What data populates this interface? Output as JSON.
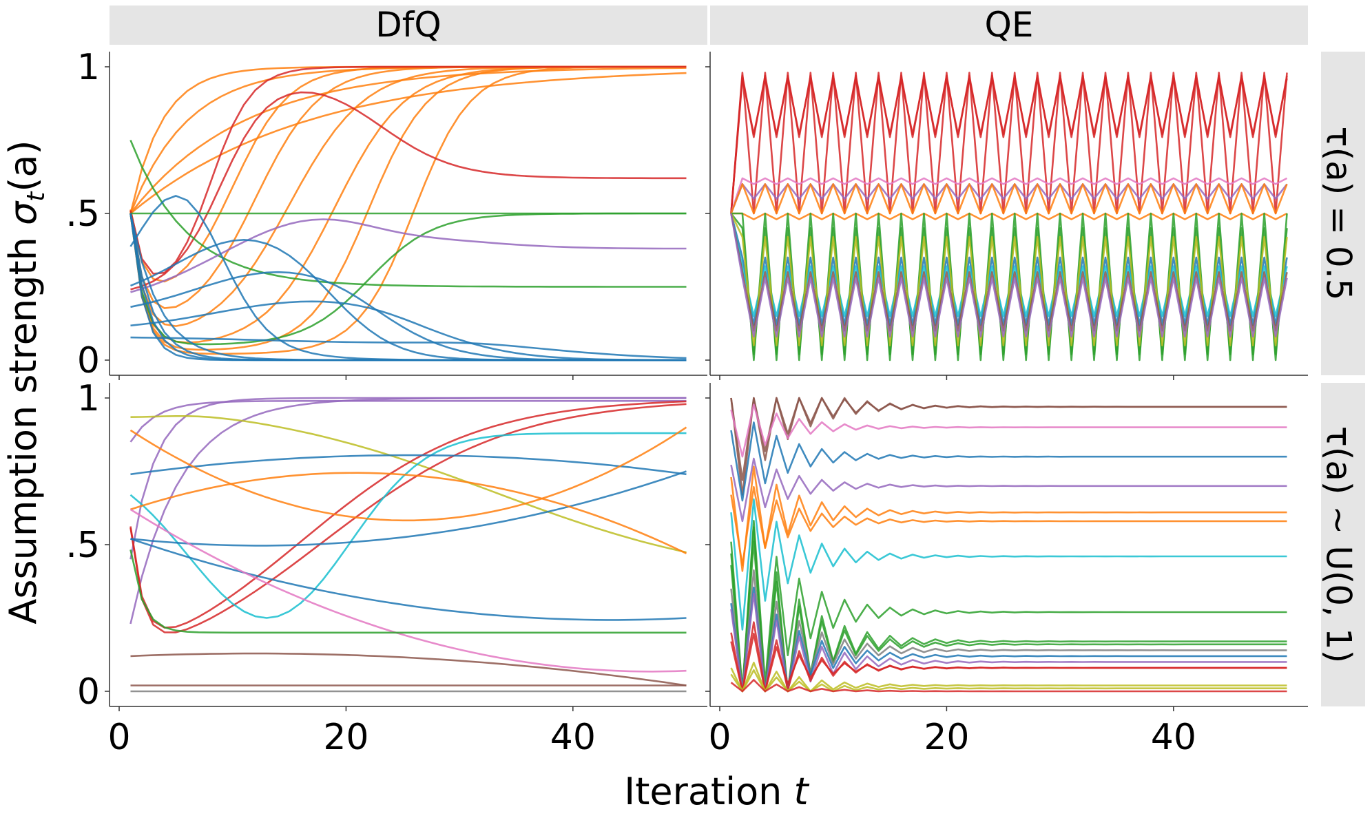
{
  "figure": {
    "ylabel_text": "Assumption strength ",
    "ylabel_symbol": "σ",
    "ylabel_sub": "t",
    "ylabel_arg": "(a)",
    "xlabel_text": "Iteration ",
    "xlabel_var": "t",
    "columns": [
      "DfQ",
      "QE"
    ],
    "rows": [
      "τ(a) = 0.5",
      "τ(a) ~ U(0, 1)"
    ]
  },
  "chart_data": {
    "type": "line",
    "layout": "facet-grid-2x2",
    "xlim": [
      0,
      51
    ],
    "ylim": [
      0,
      1
    ],
    "x_ticks": [
      0,
      20,
      40
    ],
    "x_tick_labels": [
      "0",
      "20",
      "40"
    ],
    "y_ticks": [
      0,
      0.5,
      1
    ],
    "y_tick_labels": [
      "0",
      ".5",
      "1"
    ],
    "colors": [
      "#1f77b4",
      "#ff7f0e",
      "#2ca02c",
      "#d62728",
      "#9467bd",
      "#8c564b",
      "#e377c2",
      "#7f7f7f",
      "#bcbd22",
      "#17becf"
    ],
    "panels": [
      {
        "id": "dfq-fixed",
        "series": [
          {
            "color": "#ff7f0e",
            "kind": "sigmoid",
            "params": [
              0.5,
              1.0,
              2.5,
              0.9
            ]
          },
          {
            "color": "#ff7f0e",
            "kind": "sigmoid",
            "params": [
              0.5,
              1.0,
              3.5,
              0.7
            ]
          },
          {
            "color": "#ff7f0e",
            "kind": "sigmoid",
            "params": [
              0.5,
              1.0,
              5,
              0.5
            ]
          },
          {
            "color": "#ff7f0e",
            "kind": "sigmoid",
            "params": [
              0.5,
              1.0,
              7,
              0.45
            ]
          },
          {
            "color": "#ff7f0e",
            "kind": "dipsig",
            "params": [
              0.18,
              10,
              0.4
            ]
          },
          {
            "color": "#ff7f0e",
            "kind": "dipsig",
            "params": [
              0.1,
              12,
              0.35
            ]
          },
          {
            "color": "#ff7f0e",
            "kind": "dipsig",
            "params": [
              0.06,
              15,
              0.3
            ]
          },
          {
            "color": "#ff7f0e",
            "kind": "dipsig",
            "params": [
              0.04,
              19,
              0.32
            ]
          },
          {
            "color": "#ff7f0e",
            "kind": "dipsig",
            "params": [
              0.03,
              22,
              0.38
            ]
          },
          {
            "color": "#ff7f0e",
            "kind": "dipsig",
            "params": [
              0.02,
              26,
              0.4
            ]
          },
          {
            "color": "#d62728",
            "kind": "rise-fall",
            "params": [
              0.22,
              0.98,
              9,
              0.45,
              0.62,
              23,
              0.3
            ]
          },
          {
            "color": "#d62728",
            "kind": "dipsig",
            "params": [
              0.2,
              8,
              0.55
            ]
          },
          {
            "color": "#2ca02c",
            "kind": "const",
            "params": [
              0.5
            ]
          },
          {
            "color": "#2ca02c",
            "kind": "dipsig-to",
            "params": [
              0.05,
              22,
              0.35,
              0.5
            ]
          },
          {
            "color": "#2ca02c",
            "kind": "decay",
            "params": [
              0.5,
              0.0,
              5,
              0.25
            ]
          },
          {
            "color": "#9467bd",
            "kind": "bump",
            "params": [
              0.18,
              0.48,
              18,
              0.38
            ]
          },
          {
            "color": "#1f77b4",
            "kind": "bump",
            "params": [
              0.2,
              0.56,
              5,
              0.0
            ]
          },
          {
            "color": "#1f77b4",
            "kind": "bump",
            "params": [
              0.2,
              0.41,
              11,
              0.0
            ]
          },
          {
            "color": "#1f77b4",
            "kind": "bump",
            "params": [
              0.15,
              0.3,
              14,
              0.0
            ]
          },
          {
            "color": "#1f77b4",
            "kind": "bump",
            "params": [
              0.1,
              0.2,
              17,
              0.0
            ]
          },
          {
            "color": "#1f77b4",
            "kind": "bump",
            "params": [
              0.08,
              0.06,
              25,
              0.0
            ]
          },
          {
            "color": "#1f77b4",
            "kind": "decay",
            "params": [
              0.5,
              0.0,
              1.8,
              0.0
            ]
          },
          {
            "color": "#1f77b4",
            "kind": "decay",
            "params": [
              0.5,
              0.0,
              1.5,
              0.0
            ]
          },
          {
            "color": "#1f77b4",
            "kind": "decay",
            "params": [
              0.5,
              0.0,
              1.2,
              0.0
            ]
          },
          {
            "color": "#1f77b4",
            "kind": "decay",
            "params": [
              0.5,
              0.0,
              2.5,
              0.0
            ]
          }
        ]
      },
      {
        "id": "qe-fixed",
        "series": [
          {
            "color": "#d62728",
            "kind": "zigzag",
            "params": [
              0.98,
              0.5
            ]
          },
          {
            "color": "#d62728",
            "kind": "zigzag",
            "params": [
              0.97,
              0.76
            ]
          },
          {
            "color": "#d62728",
            "kind": "zigzag",
            "params": [
              0.96,
              0.77
            ]
          },
          {
            "color": "#e377c2",
            "kind": "zigzag",
            "params": [
              0.62,
              0.6
            ]
          },
          {
            "color": "#9467bd",
            "kind": "zigzag",
            "params": [
              0.6,
              0.55
            ]
          },
          {
            "color": "#ff7f0e",
            "kind": "zigzag",
            "params": [
              0.6,
              0.5
            ]
          },
          {
            "color": "#ff7f0e",
            "kind": "zigzag",
            "params": [
              0.5,
              0.48
            ]
          },
          {
            "color": "#1f77b4",
            "kind": "zigzag",
            "params": [
              0.35,
              0.12
            ]
          },
          {
            "color": "#17becf",
            "kind": "zigzag",
            "params": [
              0.32,
              0.15
            ]
          },
          {
            "color": "#2ca02c",
            "kind": "zigzag",
            "params": [
              0.5,
              0.0
            ]
          },
          {
            "color": "#2ca02c",
            "kind": "zigzag",
            "params": [
              0.45,
              0.02
            ]
          },
          {
            "color": "#bcbd22",
            "kind": "zigzag",
            "params": [
              0.42,
              0.05
            ]
          },
          {
            "color": "#8c564b",
            "kind": "zigzag",
            "params": [
              0.3,
              0.1
            ]
          },
          {
            "color": "#9467bd",
            "kind": "zigzag",
            "params": [
              0.28,
              0.08
            ]
          }
        ]
      },
      {
        "id": "dfq-uniform",
        "series": [
          {
            "color": "#9467bd",
            "kind": "sigmoid",
            "params": [
              0.45,
              1.0,
              2,
              0.9
            ]
          },
          {
            "color": "#9467bd",
            "kind": "sigmoid",
            "params": [
              0.23,
              1.0,
              3,
              0.7
            ]
          },
          {
            "color": "#9467bd",
            "kind": "sigmoid",
            "params": [
              0.85,
              0.99,
              2,
              0.9
            ]
          },
          {
            "color": "#bcbd22",
            "kind": "rise-fall",
            "params": [
              0.96,
              1.0,
              4,
              0.5,
              0.36,
              33,
              0.09
            ]
          },
          {
            "color": "#d62728",
            "kind": "dipsig",
            "params": [
              0.02,
              18,
              0.12
            ]
          },
          {
            "color": "#d62728",
            "kind": "dipsig",
            "params": [
              0.02,
              16,
              0.13
            ]
          },
          {
            "color": "#17becf",
            "kind": "bump",
            "params": [
              0.79,
              0.25,
              13,
              0.88
            ]
          },
          {
            "color": "#1f77b4",
            "kind": "wave",
            "params": [
              0.74,
              0.87,
              15,
              0.74
            ]
          },
          {
            "color": "#1f77b4",
            "kind": "wave",
            "params": [
              0.52,
              0.2,
              40,
              0.25
            ]
          },
          {
            "color": "#1f77b4",
            "kind": "wave",
            "params": [
              0.52,
              0.42,
              17,
              0.75
            ]
          },
          {
            "color": "#ff7f0e",
            "kind": "wave",
            "params": [
              0.89,
              0.27,
              6,
              0.9
            ]
          },
          {
            "color": "#ff7f0e",
            "kind": "wave",
            "params": [
              0.62,
              0.93,
              8,
              0.47
            ]
          },
          {
            "color": "#e377c2",
            "kind": "wave",
            "params": [
              0.62,
              0.03,
              38,
              0.07
            ]
          },
          {
            "color": "#2ca02c",
            "kind": "dipsig-to",
            "params": [
              0.2,
              15,
              0.2,
              0.2
            ]
          },
          {
            "color": "#8c564b",
            "kind": "wave",
            "params": [
              0.12,
              0.16,
              9,
              0.02
            ]
          },
          {
            "color": "#8c564b",
            "kind": "const",
            "params": [
              0.02
            ]
          },
          {
            "color": "#7f7f7f",
            "kind": "const",
            "params": [
              0.0
            ]
          }
        ]
      },
      {
        "id": "qe-uniform",
        "series": [
          {
            "color": "#8c564b",
            "kind": "damped",
            "params": [
              0.97,
              0.25
            ]
          },
          {
            "color": "#8c564b",
            "kind": "damped",
            "params": [
              0.97,
              0.3
            ]
          },
          {
            "color": "#e377c2",
            "kind": "damped",
            "params": [
              0.9,
              0.1
            ]
          },
          {
            "color": "#1f77b4",
            "kind": "damped",
            "params": [
              0.8,
              0.15
            ]
          },
          {
            "color": "#9467bd",
            "kind": "damped",
            "params": [
              0.7,
              0.12
            ]
          },
          {
            "color": "#ff7f0e",
            "kind": "damped",
            "params": [
              0.61,
              0.2
            ]
          },
          {
            "color": "#ff7f0e",
            "kind": "damped",
            "params": [
              0.58,
              0.15
            ]
          },
          {
            "color": "#17becf",
            "kind": "damped",
            "params": [
              0.46,
              0.25
            ]
          },
          {
            "color": "#2ca02c",
            "kind": "damped",
            "params": [
              0.27,
              0.4
            ]
          },
          {
            "color": "#2ca02c",
            "kind": "damped",
            "params": [
              0.17,
              0.5
            ]
          },
          {
            "color": "#2ca02c",
            "kind": "damped",
            "params": [
              0.16,
              0.45
            ]
          },
          {
            "color": "#7f7f7f",
            "kind": "damped",
            "params": [
              0.14,
              0.35
            ]
          },
          {
            "color": "#1f77b4",
            "kind": "damped",
            "params": [
              0.12,
              0.3
            ]
          },
          {
            "color": "#9467bd",
            "kind": "damped",
            "params": [
              0.1,
              0.3
            ]
          },
          {
            "color": "#d62728",
            "kind": "damped",
            "params": [
              0.08,
              0.2
            ]
          },
          {
            "color": "#d62728",
            "kind": "damped",
            "params": [
              0.08,
              0.15
            ]
          },
          {
            "color": "#bcbd22",
            "kind": "damped",
            "params": [
              0.02,
              0.1
            ]
          },
          {
            "color": "#bcbd22",
            "kind": "damped",
            "params": [
              0.01,
              0.08
            ]
          },
          {
            "color": "#d62728",
            "kind": "damped",
            "params": [
              0.0,
              0.05
            ]
          }
        ]
      }
    ]
  }
}
